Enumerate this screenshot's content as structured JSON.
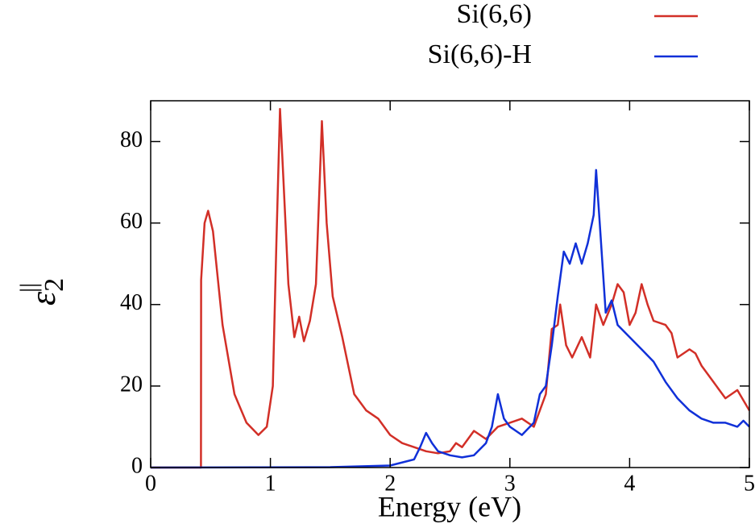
{
  "chart_data": {
    "type": "line",
    "xlabel": "Energy (eV)",
    "ylabel": {
      "symbol": "ε",
      "sub": "2",
      "sup": "||"
    },
    "xlim": [
      0,
      5
    ],
    "xticks": [
      0,
      1,
      2,
      3,
      4,
      5
    ],
    "ylim": [
      0,
      90
    ],
    "yticks": [
      0,
      20,
      40,
      60,
      80
    ],
    "grid": false,
    "legend": "top",
    "series": [
      {
        "name": "Si(6,6)",
        "color": "#d22f27",
        "x": [
          0,
          0.42,
          0.421,
          0.45,
          0.48,
          0.52,
          0.6,
          0.7,
          0.8,
          0.9,
          0.97,
          1.02,
          1.05,
          1.08,
          1.11,
          1.15,
          1.2,
          1.24,
          1.28,
          1.33,
          1.38,
          1.43,
          1.47,
          1.52,
          1.6,
          1.7,
          1.8,
          1.9,
          2.0,
          2.1,
          2.2,
          2.3,
          2.4,
          2.5,
          2.55,
          2.6,
          2.7,
          2.8,
          2.9,
          3.0,
          3.1,
          3.2,
          3.3,
          3.35,
          3.4,
          3.42,
          3.47,
          3.52,
          3.6,
          3.67,
          3.72,
          3.78,
          3.85,
          3.9,
          3.95,
          4.0,
          4.05,
          4.1,
          4.15,
          4.2,
          4.3,
          4.35,
          4.4,
          4.5,
          4.55,
          4.6,
          4.7,
          4.8,
          4.9,
          5.0
        ],
        "values": [
          0,
          0,
          46,
          60,
          63,
          58,
          35,
          18,
          11,
          8,
          10,
          20,
          55,
          88,
          70,
          45,
          32,
          37,
          31,
          36,
          45,
          85,
          60,
          42,
          32,
          18,
          14,
          12,
          8,
          6,
          5,
          4,
          3.5,
          4,
          6,
          5,
          9,
          7,
          10,
          11,
          12,
          10,
          18,
          34,
          35,
          40,
          30,
          27,
          32,
          27,
          40,
          35,
          40,
          45,
          43,
          35,
          38,
          45,
          40,
          36,
          35,
          33,
          27,
          29,
          28,
          25,
          21,
          17,
          19,
          14
        ]
      },
      {
        "name": "Si(6,6)-H",
        "color": "#1030d8",
        "x": [
          0,
          1.5,
          2.0,
          2.2,
          2.25,
          2.3,
          2.35,
          2.4,
          2.5,
          2.6,
          2.7,
          2.8,
          2.85,
          2.9,
          2.95,
          3.0,
          3.1,
          3.2,
          3.25,
          3.3,
          3.35,
          3.4,
          3.45,
          3.5,
          3.55,
          3.6,
          3.65,
          3.7,
          3.72,
          3.75,
          3.8,
          3.85,
          3.9,
          4.0,
          4.1,
          4.2,
          4.3,
          4.4,
          4.5,
          4.6,
          4.7,
          4.8,
          4.9,
          4.95,
          5.0
        ],
        "values": [
          0,
          0.1,
          0.5,
          2,
          5,
          8.5,
          6,
          4,
          3,
          2.5,
          3,
          6,
          10,
          18,
          12,
          10,
          8,
          11,
          18,
          20,
          30,
          42,
          53,
          50,
          55,
          50,
          55,
          62,
          73,
          60,
          38,
          41,
          35,
          32,
          29,
          26,
          21,
          17,
          14,
          12,
          11,
          11,
          10,
          11.5,
          10
        ]
      }
    ]
  }
}
